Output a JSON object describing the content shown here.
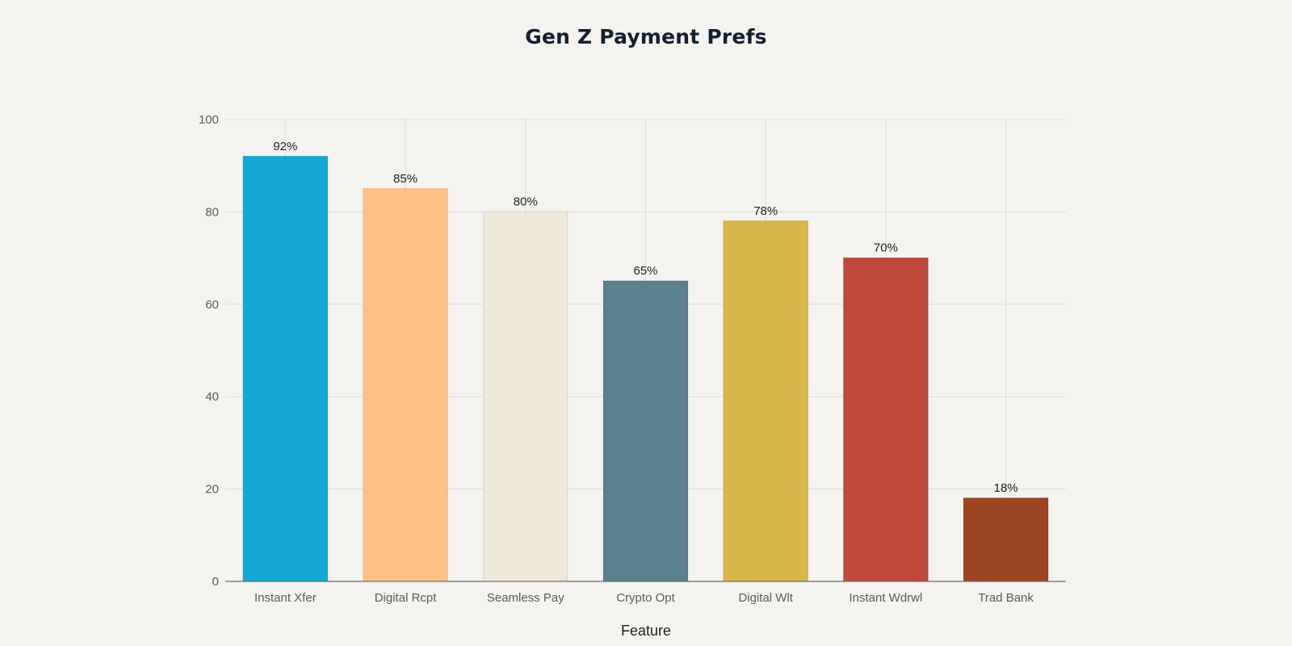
{
  "chart_data": {
    "type": "bar",
    "title": "Gen Z Payment Prefs",
    "xlabel": "Feature",
    "ylabel": "",
    "ylim": [
      0,
      100
    ],
    "yticks": [
      0,
      20,
      40,
      60,
      80,
      100
    ],
    "grid": true,
    "categories": [
      "Instant Xfer",
      "Digital Rcpt",
      "Seamless Pay",
      "Crypto Opt",
      "Digital Wlt",
      "Instant Wdrwl",
      "Trad Bank"
    ],
    "values": [
      92,
      85,
      80,
      65,
      78,
      70,
      18
    ],
    "data_labels": [
      "92%",
      "85%",
      "80%",
      "65%",
      "78%",
      "70%",
      "18%"
    ],
    "colors": [
      "#13a9d4",
      "#ffc185",
      "#efe9d9",
      "#5b818f",
      "#d7b64a",
      "#c0493b",
      "#9c4621"
    ],
    "border_colors": [
      "#119abf",
      "#f0b274",
      "#d9d3c3",
      "#4f7583",
      "#c8a73f",
      "#b13f33",
      "#8a3c1b"
    ]
  }
}
